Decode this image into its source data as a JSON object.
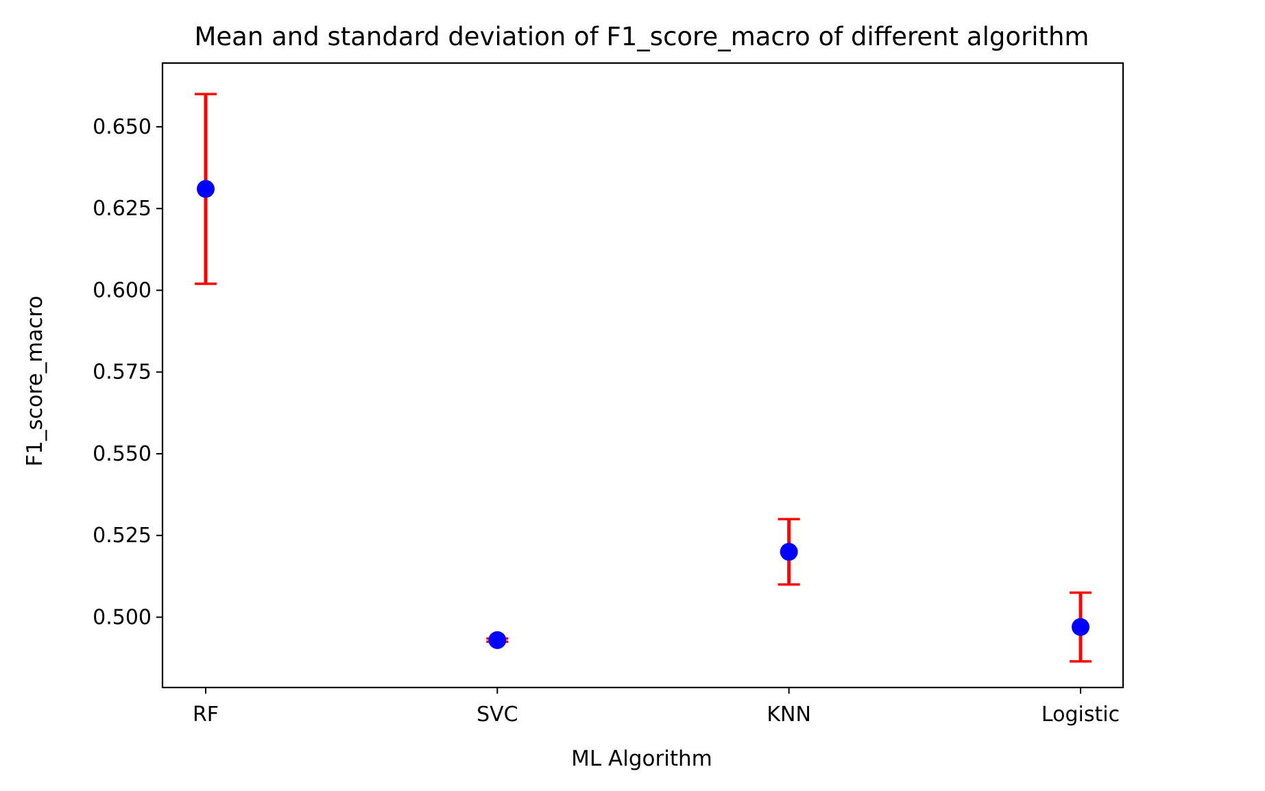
{
  "chart_data": {
    "type": "scatter",
    "title": "Mean and standard deviation of F1_score_macro of different algorithm",
    "xlabel": "ML Algorithm",
    "ylabel": "F1_score_macro",
    "categories": [
      "RF",
      "SVC",
      "KNN",
      "Logistic"
    ],
    "series": [
      {
        "mean": [
          0.631,
          0.493,
          0.52,
          0.497
        ],
        "std": [
          0.029,
          0.0005,
          0.01,
          0.0105
        ]
      }
    ],
    "yticks": [
      "0.500",
      "0.525",
      "0.550",
      "0.575",
      "0.600",
      "0.625",
      "0.650"
    ],
    "ylim": [
      0.4785,
      0.6695
    ],
    "grid": false,
    "legend": "none",
    "colors": {
      "marker": "#0000ff",
      "errorbar": "#ff0000",
      "axes": "#000000"
    }
  }
}
